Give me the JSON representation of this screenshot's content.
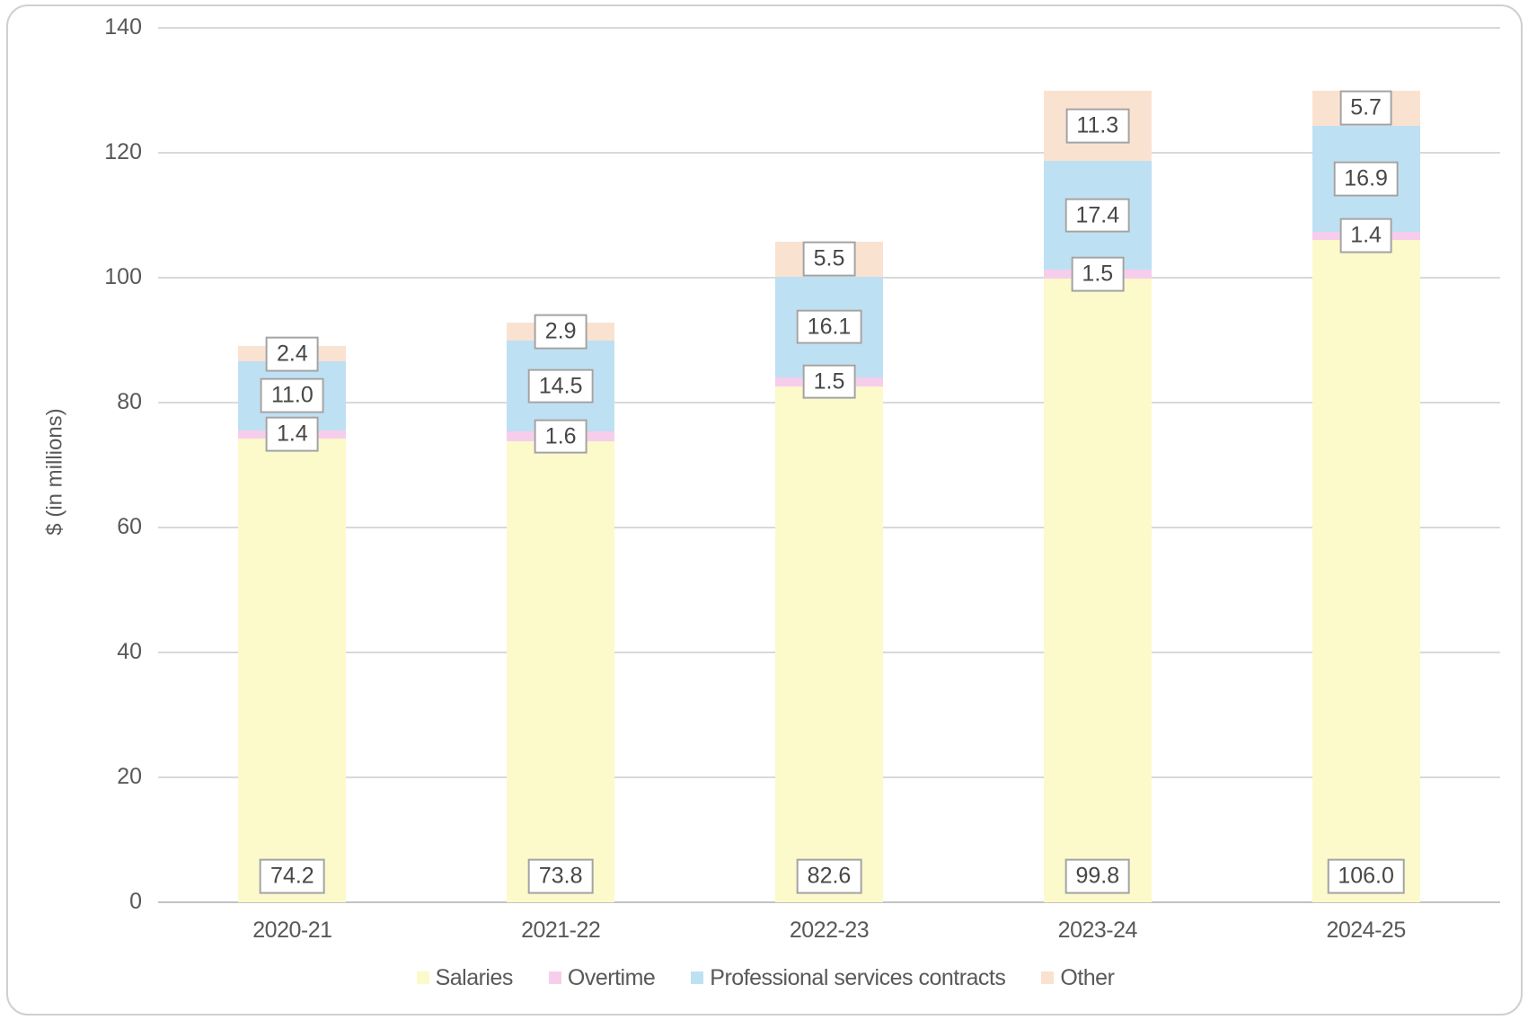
{
  "chart_data": {
    "type": "bar",
    "stacked": true,
    "title": "",
    "ylabel": "$ (in millions)",
    "xlabel": "",
    "ylim": [
      0,
      140
    ],
    "yticks": [
      0,
      20,
      40,
      60,
      80,
      100,
      120,
      140
    ],
    "grid": true,
    "legend_position": "bottom",
    "data_labels": true,
    "categories": [
      "2020-21",
      "2021-22",
      "2022-23",
      "2023-24",
      "2024-25"
    ],
    "series": [
      {
        "name": "Salaries",
        "color": "#fcf9ca",
        "label_position": "inside-base",
        "values": [
          74.2,
          73.8,
          82.6,
          99.8,
          106.0
        ]
      },
      {
        "name": "Overtime",
        "color": "#f7cdec",
        "label_position": "center",
        "values": [
          1.4,
          1.6,
          1.5,
          1.5,
          1.4
        ]
      },
      {
        "name": "Professional services contracts",
        "color": "#bee0f3",
        "label_position": "center",
        "values": [
          11.0,
          14.5,
          16.1,
          17.4,
          16.9
        ]
      },
      {
        "name": "Other",
        "color": "#fae2d1",
        "label_position": "center",
        "values": [
          2.4,
          2.9,
          5.5,
          11.3,
          5.7
        ]
      }
    ],
    "colors": {
      "gridline": "#d9d9d9",
      "axis_line": "#c3c3c3",
      "tick_text": "#595959",
      "label_box_border": "#a3a3a3",
      "label_box_text": "#474747",
      "card_border": "#cfcfd4"
    }
  }
}
